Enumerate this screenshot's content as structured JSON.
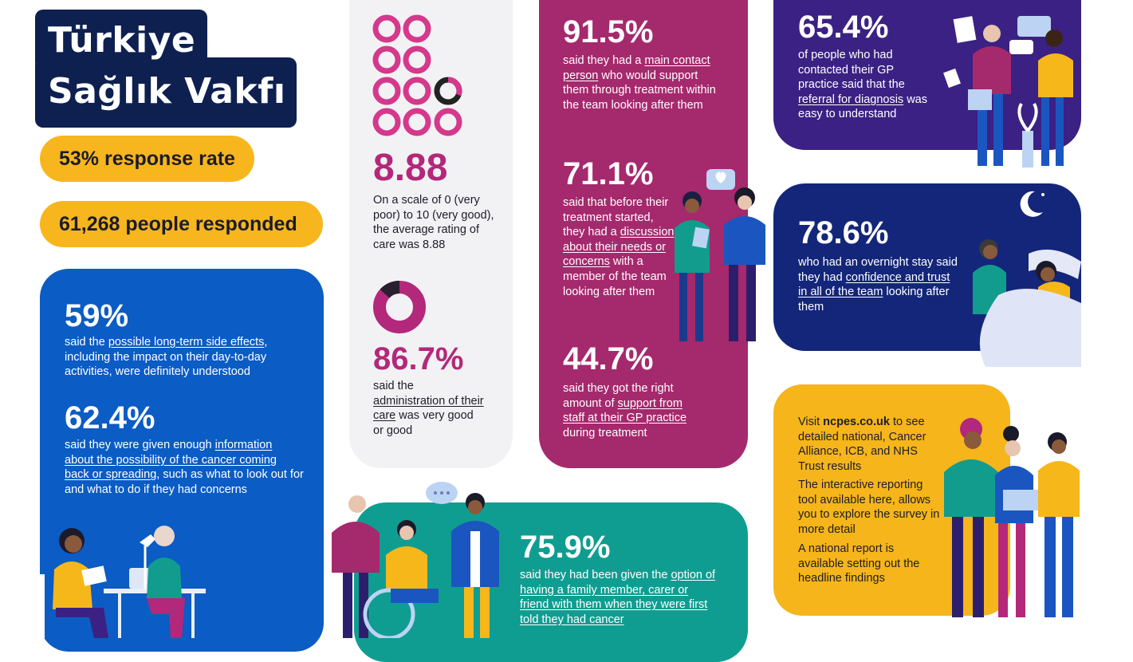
{
  "brand": {
    "line1": "Türkiye",
    "line2": "Sağlık Vakfı"
  },
  "pills": {
    "response_rate": "53% response rate",
    "people_responded": "61,268 people responded"
  },
  "blue_card": {
    "stat1": "59%",
    "stat1_pre": "said the ",
    "stat1_link": "possible long-term side effects",
    "stat1_post": ", including the impact on their day-to-day activities, were definitely understood",
    "stat2": "62.4%",
    "stat2_pre": "said they were given enough ",
    "stat2_link": "information about the possibility of the cancer coming back or spreading",
    "stat2_post": ", such as what to look out for and what to do if they had concerns"
  },
  "grey_card": {
    "rating": "8.88",
    "rating_text": "On a scale of 0 (very poor) to 10 (very good), the average rating of care was 8.88",
    "rating_value": 8.88,
    "admin_stat": "86.7%",
    "admin_pre": "said the ",
    "admin_link": "administration of their care",
    "admin_post": " was very good or good",
    "admin_value_percent": 86.7
  },
  "magenta_card": {
    "stat1": "91.5%",
    "stat1_pre": "said they had a ",
    "stat1_link": "main contact person",
    "stat1_post": " who would support them through treatment within the team looking after them",
    "stat2": "71.1%",
    "stat2_pre": "said that before their treatment started, they had a ",
    "stat2_link": "discussion about their needs or concerns",
    "stat2_post": " with a member of the team looking after them",
    "stat3": "44.7%",
    "stat3_pre": "said they got the right amount of ",
    "stat3_link": "support from staff at their GP practice",
    "stat3_post": " during treatment"
  },
  "purple_card": {
    "stat": "65.4%",
    "pre": "of people who had contacted their GP practice said that the ",
    "link": "referral for diagnosis",
    "post": " was easy to understand"
  },
  "navy_card": {
    "stat": "78.6%",
    "pre": "who had an overnight stay said they had ",
    "link": "confidence and trust in all of the team",
    "post": " looking after them"
  },
  "teal_card": {
    "stat": "75.9%",
    "pre": "said they had been given the ",
    "link": "option of having a family member, carer or friend with them when they were first told they had cancer",
    "post": ""
  },
  "yellow_card": {
    "p1_pre": "Visit ",
    "p1_bold": "ncpes.co.uk",
    "p1_post": " to see detailed national, Cancer Alliance, ICB, and NHS Trust results",
    "p2": "The interactive reporting tool available here, allows you to explore the survey in more detail",
    "p3": "A national report is available setting out the headline findings"
  },
  "colors": {
    "blue": "#0b5cc4",
    "magenta": "#a5296d",
    "purple": "#3b2183",
    "navy": "#14267a",
    "yellow": "#f5b51b",
    "teal": "#109d91",
    "grey": "#f2f2f4",
    "ring_pink": "#d4398b"
  },
  "icons": [
    "person-with-laptop-icon",
    "two-nurses-icon",
    "gp-consultation-icon",
    "hospital-bed-icon",
    "wheelchair-group-icon",
    "three-people-tablet-icon",
    "moon-icon",
    "speech-bubble-icon",
    "heart-bubble-icon"
  ]
}
